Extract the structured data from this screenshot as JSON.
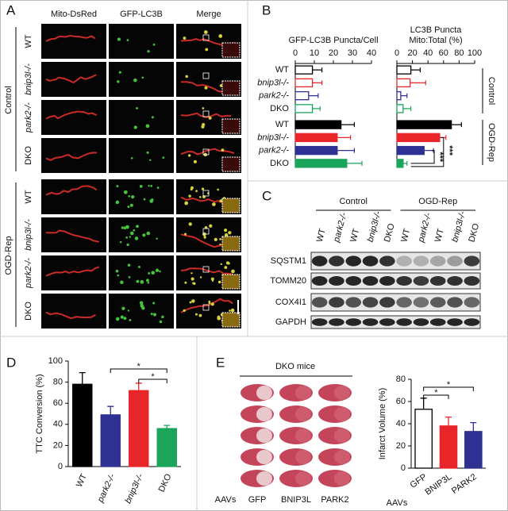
{
  "panel_labels": [
    "A",
    "B",
    "C",
    "D",
    "E"
  ],
  "panel_a": {
    "columns": [
      "Mito-DsRed",
      "GFP-LC3B",
      "Merge"
    ],
    "groups": [
      {
        "name": "Control",
        "rows": [
          "WT",
          "bnip3l-/-",
          "park2-/-",
          "DKO"
        ]
      },
      {
        "name": "OGD-Rep",
        "rows": [
          "WT",
          "bnip3l-/-",
          "park2-/-",
          "DKO"
        ]
      }
    ]
  },
  "panel_c": {
    "groups": [
      "Control",
      "OGD-Rep"
    ],
    "lanes": [
      "WT",
      "park2-/-",
      "WT",
      "bnip3l-/-",
      "DKO",
      "WT",
      "park2-/-",
      "WT",
      "bnip3l-/-",
      "DKO"
    ],
    "rows": [
      "SQSTM1",
      "TOMM20",
      "COX4I1",
      "GAPDH"
    ]
  },
  "panel_e": {
    "title": "DKO mice",
    "aavs": "AAVs",
    "columns": [
      "GFP",
      "BNIP3L",
      "PARK2"
    ]
  },
  "chart_data": [
    {
      "type": "hbar",
      "title": "GFP-LC3B Puncta/Cell",
      "categories": [
        "WT",
        "bnip3l-/-",
        "park2-/-",
        "DKO",
        "WT",
        "bnip3l-/-",
        "park2-/-",
        "DKO"
      ],
      "values": [
        9,
        9,
        7,
        9,
        24,
        22,
        22,
        27
      ],
      "errors": [
        5,
        5,
        5,
        4,
        7,
        7,
        9,
        8
      ],
      "colors": [
        "#000000",
        "#e8262a",
        "#2e3192",
        "#1aa55a",
        "#000000",
        "#e8262a",
        "#2e3192",
        "#1aa55a"
      ],
      "fills": [
        "#ffffff",
        "#ffffff",
        "#ffffff",
        "#ffffff",
        "#000000",
        "#e8262a",
        "#2e3192",
        "#1aa55a"
      ],
      "xlim": [
        0,
        40
      ],
      "xticks": [
        0,
        10,
        20,
        30,
        40
      ]
    },
    {
      "type": "hbar",
      "title": "LC3B Puncta",
      "subtitle": "Mito:Total (%)",
      "values": [
        18,
        17,
        5,
        8,
        70,
        55,
        35,
        8
      ],
      "errors": [
        12,
        20,
        8,
        10,
        13,
        8,
        12,
        5
      ],
      "colors": [
        "#000000",
        "#e8262a",
        "#2e3192",
        "#1aa55a",
        "#000000",
        "#e8262a",
        "#2e3192",
        "#1aa55a"
      ],
      "fills": [
        "#ffffff",
        "#ffffff",
        "#ffffff",
        "#ffffff",
        "#000000",
        "#e8262a",
        "#2e3192",
        "#1aa55a"
      ],
      "xlim": [
        0,
        100
      ],
      "xticks": [
        0,
        20,
        40,
        60,
        80,
        100
      ],
      "groups": [
        "Control",
        "OGD-Rep"
      ],
      "annotations": [
        "***",
        "***"
      ]
    },
    {
      "type": "bar",
      "y_label": "TTC Conversion (%)",
      "categories": [
        "WT",
        "park2-/-",
        "bnip3l-/-",
        "DKO"
      ],
      "values": [
        78,
        49,
        72,
        36
      ],
      "errors": [
        11,
        8,
        7,
        3
      ],
      "colors": [
        "#000000",
        "#2e3192",
        "#e8262a",
        "#1aa55a"
      ],
      "fills": [
        "#000000",
        "#2e3192",
        "#e8262a",
        "#1aa55a"
      ],
      "ylim": [
        0,
        100
      ],
      "yticks": [
        0,
        20,
        40,
        60,
        80,
        100
      ],
      "annotations": [
        "*",
        "*"
      ]
    },
    {
      "type": "bar",
      "y_label": "Infarct Volume (%)",
      "x_prefix": "AAVs",
      "categories": [
        "GFP",
        "BNIP3L",
        "PARK2"
      ],
      "values": [
        53,
        38,
        33
      ],
      "errors": [
        10,
        8,
        8
      ],
      "colors": [
        "#000000",
        "#e8262a",
        "#2e3192"
      ],
      "fills": [
        "#ffffff",
        "#e8262a",
        "#2e3192"
      ],
      "ylim": [
        0,
        80
      ],
      "yticks": [
        0,
        20,
        40,
        60,
        80
      ],
      "annotations": [
        "*",
        "*"
      ]
    }
  ]
}
